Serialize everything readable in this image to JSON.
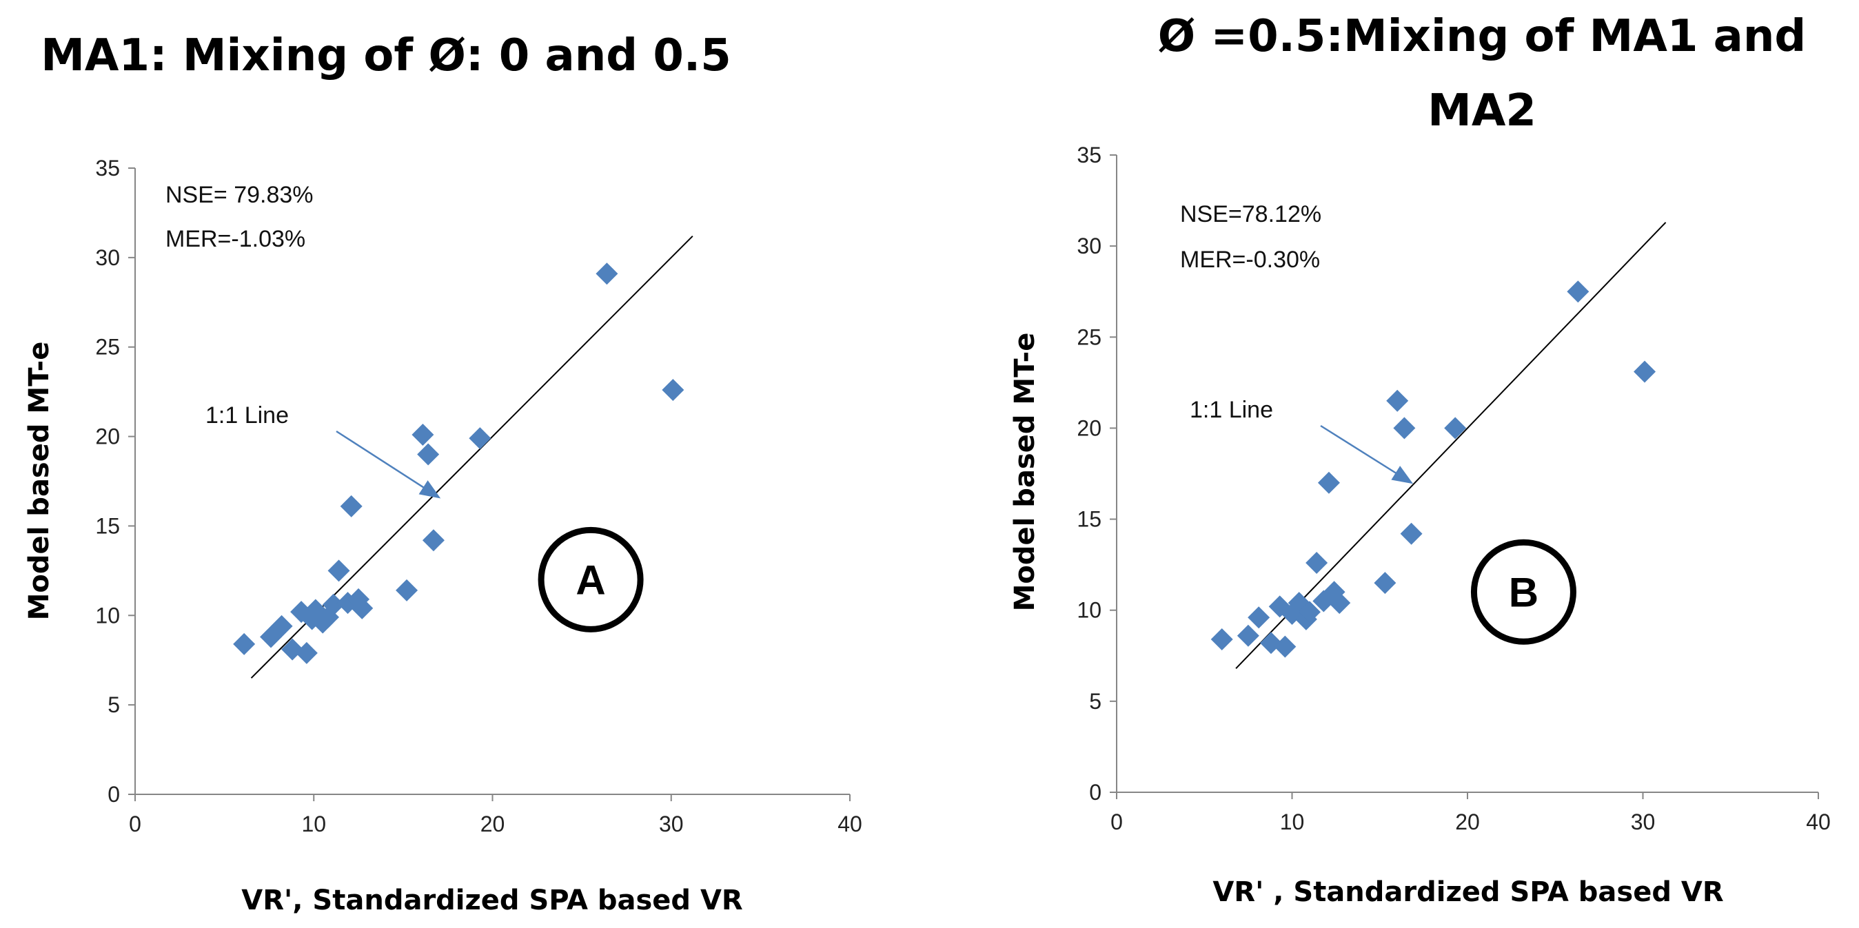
{
  "chart_data": [
    {
      "type": "scatter",
      "title_lines": [
        "MA1: Mixing of Ø: 0 and 0.5"
      ],
      "xlabel": "VR', Standardized SPA based  VR",
      "ylabel": "Model based MT-e",
      "xlim": [
        0,
        40
      ],
      "ylim": [
        0,
        35
      ],
      "x_ticks": [
        "0",
        "10",
        "20",
        "30",
        "40"
      ],
      "y_ticks": [
        "0",
        "5",
        "10",
        "15",
        "20",
        "25",
        "30",
        "35"
      ],
      "stats": [
        "NSE= 79.83%",
        "MER=-1.03%"
      ],
      "line_label": "1:1 Line",
      "line_range": [
        6.5,
        31.2
      ],
      "arrow_target": [
        17,
        16.6
      ],
      "panel_label": "A",
      "badge_at": [
        25.5,
        12
      ],
      "grid": false,
      "series": [
        {
          "name": "points",
          "color": "#4F81BD",
          "x": [
            6.1,
            7.6,
            8.2,
            8.8,
            9.3,
            9.6,
            9.9,
            10.1,
            10.5,
            10.8,
            11.1,
            11.4,
            11.9,
            12.1,
            12.5,
            12.7,
            15.2,
            16.1,
            16.4,
            16.7,
            19.3,
            26.4,
            30.1
          ],
          "y": [
            8.4,
            8.8,
            9.4,
            8.1,
            10.2,
            7.9,
            9.8,
            10.3,
            9.6,
            9.9,
            10.6,
            12.5,
            10.7,
            16.1,
            10.9,
            10.4,
            11.4,
            20.1,
            19.0,
            14.2,
            19.9,
            29.1,
            22.6
          ]
        }
      ]
    },
    {
      "type": "scatter",
      "title_lines": [
        "Ø =0.5:Mixing of MA1 and",
        "MA2"
      ],
      "xlabel": "VR' , Standardized SPA based VR",
      "ylabel": "Model based MT-e",
      "xlim": [
        0,
        40
      ],
      "ylim": [
        0,
        35
      ],
      "x_ticks": [
        "0",
        "10",
        "20",
        "30",
        "40"
      ],
      "y_ticks": [
        "0",
        "5",
        "10",
        "15",
        "20",
        "25",
        "30",
        "35"
      ],
      "stats": [
        "NSE=78.12%",
        "MER=-0.30%"
      ],
      "line_label": "1:1 Line",
      "line_range": [
        6.8,
        31.3
      ],
      "arrow_target": [
        16.8,
        17
      ],
      "panel_label": "B",
      "badge_at": [
        23.2,
        11
      ],
      "grid": false,
      "series": [
        {
          "name": "points",
          "color": "#4F81BD",
          "x": [
            6.0,
            7.5,
            8.1,
            8.8,
            9.3,
            9.6,
            10.0,
            10.4,
            10.8,
            11.0,
            11.4,
            11.8,
            12.1,
            12.4,
            12.7,
            15.3,
            16.0,
            16.4,
            16.8,
            19.3,
            26.3,
            30.1
          ],
          "y": [
            8.4,
            8.6,
            9.6,
            8.2,
            10.2,
            8.0,
            9.8,
            10.4,
            9.5,
            9.9,
            12.6,
            10.5,
            17.0,
            11.0,
            10.4,
            11.5,
            21.5,
            20.0,
            14.2,
            20.0,
            27.5,
            23.1
          ]
        }
      ]
    }
  ]
}
